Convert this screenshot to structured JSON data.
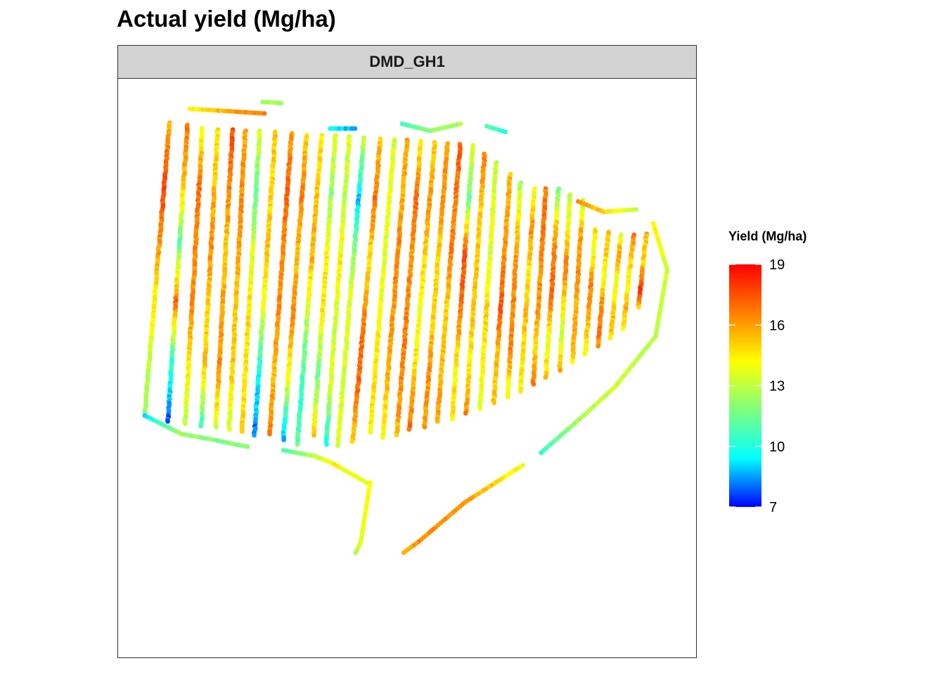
{
  "title": "Actual yield (Mg/ha)",
  "facet_label": "DMD_GH1",
  "legend": {
    "title": "Yield (Mg/ha)",
    "ticks": [
      19,
      16,
      13,
      10,
      7
    ]
  },
  "chart_data": {
    "type": "scatter",
    "title": "Actual yield (Mg/ha)",
    "facet": "DMD_GH1",
    "color_variable": "Yield (Mg/ha)",
    "color_scale": {
      "min": 7,
      "max": 19,
      "colors": [
        "#0000ff",
        "#00ffff",
        "#7fff7f",
        "#ffff00",
        "#ff7f00",
        "#ff0000"
      ],
      "ticks": [
        7,
        10,
        13,
        16,
        19
      ]
    },
    "axes_visible": false,
    "grid": false,
    "legend_position": "right",
    "passes": [
      {
        "x0": 0.089,
        "y0": 0.076,
        "x1": 0.046,
        "y1": 0.582,
        "yield": [
          15.6,
          17.8,
          16.4,
          14.6,
          13.2,
          12.3
        ]
      },
      {
        "x0": 0.12,
        "y0": 0.08,
        "x1": 0.086,
        "y1": 0.592,
        "yield": [
          16.8,
          15.4,
          11.4,
          16.9,
          10.4,
          7.6
        ]
      },
      {
        "x0": 0.146,
        "y0": 0.086,
        "x1": 0.116,
        "y1": 0.596,
        "yield": [
          14.1,
          16.9,
          16.4,
          16.3,
          14.7,
          12.9
        ]
      },
      {
        "x0": 0.172,
        "y0": 0.088,
        "x1": 0.144,
        "y1": 0.6,
        "yield": [
          14.6,
          15.4,
          16.4,
          14.8,
          15.3,
          10.5
        ]
      },
      {
        "x0": 0.198,
        "y0": 0.088,
        "x1": 0.169,
        "y1": 0.602,
        "yield": [
          17.6,
          16.6,
          15.1,
          15.9,
          16.3,
          13.5
        ]
      },
      {
        "x0": 0.22,
        "y0": 0.09,
        "x1": 0.192,
        "y1": 0.606,
        "yield": [
          15.9,
          16.3,
          15.9,
          15.1,
          15.2,
          13.3
        ]
      },
      {
        "x0": 0.245,
        "y0": 0.09,
        "x1": 0.214,
        "y1": 0.61,
        "yield": [
          13.6,
          11.3,
          13.5,
          14.9,
          14.5,
          14.9
        ]
      },
      {
        "x0": 0.272,
        "y0": 0.092,
        "x1": 0.236,
        "y1": 0.616,
        "yield": [
          15.2,
          14.8,
          15.5,
          13.5,
          9.8,
          8.0
        ]
      },
      {
        "x0": 0.3,
        "y0": 0.094,
        "x1": 0.262,
        "y1": 0.614,
        "yield": [
          16.1,
          17.2,
          16.3,
          16.5,
          15.4,
          16.6
        ]
      },
      {
        "x0": 0.326,
        "y0": 0.098,
        "x1": 0.286,
        "y1": 0.624,
        "yield": [
          15.2,
          16.6,
          15.3,
          16.6,
          13.7,
          8.6
        ]
      },
      {
        "x0": 0.352,
        "y0": 0.098,
        "x1": 0.31,
        "y1": 0.632,
        "yield": [
          14.5,
          15.4,
          15.7,
          12.8,
          10.4,
          11.2
        ]
      },
      {
        "x0": 0.376,
        "y0": 0.098,
        "x1": 0.338,
        "y1": 0.616,
        "yield": [
          13.6,
          12.2,
          14.6,
          14.6,
          11.4,
          15.3
        ]
      },
      {
        "x0": 0.4,
        "y0": 0.1,
        "x1": 0.36,
        "y1": 0.632,
        "yield": [
          13.7,
          12.9,
          14.5,
          13.1,
          13.6,
          9.8
        ]
      },
      {
        "x0": 0.425,
        "y0": 0.102,
        "x1": 0.38,
        "y1": 0.634,
        "yield": [
          13.1,
          8.9,
          12.6,
          14.0,
          13.4,
          13.6
        ]
      },
      {
        "x0": 0.454,
        "y0": 0.104,
        "x1": 0.406,
        "y1": 0.627,
        "yield": [
          15.1,
          16.9,
          14.6,
          16.7,
          17.2,
          15.2
        ]
      },
      {
        "x0": 0.478,
        "y0": 0.105,
        "x1": 0.436,
        "y1": 0.611,
        "yield": [
          13.3,
          14.0,
          13.6,
          14.1,
          14.9,
          14.4
        ]
      },
      {
        "x0": 0.5,
        "y0": 0.106,
        "x1": 0.458,
        "y1": 0.62,
        "yield": [
          15.8,
          15.6,
          16.6,
          16.1,
          15.6,
          13.8
        ]
      },
      {
        "x0": 0.524,
        "y0": 0.108,
        "x1": 0.482,
        "y1": 0.616,
        "yield": [
          14.3,
          17.2,
          16.0,
          16.7,
          16.6,
          15.6
        ]
      },
      {
        "x0": 0.548,
        "y0": 0.11,
        "x1": 0.504,
        "y1": 0.606,
        "yield": [
          15.0,
          16.1,
          14.9,
          14.1,
          15.0,
          17.0
        ]
      },
      {
        "x0": 0.57,
        "y0": 0.112,
        "x1": 0.53,
        "y1": 0.602,
        "yield": [
          15.8,
          16.4,
          14.9,
          15.0,
          16.2,
          16.0
        ]
      },
      {
        "x0": 0.592,
        "y0": 0.113,
        "x1": 0.552,
        "y1": 0.592,
        "yield": [
          17.3,
          16.6,
          16.6,
          14.9,
          15.4,
          16.0
        ]
      },
      {
        "x0": 0.614,
        "y0": 0.115,
        "x1": 0.578,
        "y1": 0.588,
        "yield": [
          14.0,
          11.6,
          17.5,
          16.7,
          14.5,
          14.6
        ]
      },
      {
        "x0": 0.634,
        "y0": 0.13,
        "x1": 0.602,
        "y1": 0.578,
        "yield": [
          16.7,
          15.1,
          15.2,
          15.3,
          14.5,
          16.3
        ]
      },
      {
        "x0": 0.654,
        "y0": 0.145,
        "x1": 0.626,
        "y1": 0.57,
        "yield": [
          13.1,
          13.7,
          13.6,
          15.0,
          14.5,
          13.6
        ]
      },
      {
        "x0": 0.678,
        "y0": 0.165,
        "x1": 0.65,
        "y1": 0.56,
        "yield": [
          15.5,
          15.8,
          16.6,
          17.3,
          15.3,
          15.1
        ]
      },
      {
        "x0": 0.696,
        "y0": 0.18,
        "x1": 0.674,
        "y1": 0.55,
        "yield": [
          12.6,
          14.9,
          16.4,
          16.4,
          16.5,
          13.7
        ]
      },
      {
        "x0": 0.72,
        "y0": 0.19,
        "x1": 0.696,
        "y1": 0.54,
        "yield": [
          13.4,
          16.4,
          14.5,
          15.6,
          14.6,
          14.2
        ]
      },
      {
        "x0": 0.74,
        "y0": 0.19,
        "x1": 0.718,
        "y1": 0.528,
        "yield": [
          16.6,
          17.0,
          16.3,
          16.2,
          15.0,
          16.6
        ]
      },
      {
        "x0": 0.762,
        "y0": 0.19,
        "x1": 0.74,
        "y1": 0.516,
        "yield": [
          11.2,
          15.3,
          16.9,
          16.9,
          13.6,
          15.2
        ]
      },
      {
        "x0": 0.782,
        "y0": 0.2,
        "x1": 0.764,
        "y1": 0.504,
        "yield": [
          13.1,
          13.9,
          16.9,
          15.0,
          13.1,
          15.6
        ]
      },
      {
        "x0": 0.804,
        "y0": 0.21,
        "x1": 0.786,
        "y1": 0.49,
        "yield": [
          12.7,
          15.7,
          16.4,
          15.7,
          16.0,
          14.4
        ]
      },
      {
        "x0": 0.826,
        "y0": 0.26,
        "x1": 0.808,
        "y1": 0.476,
        "yield": [
          14.8,
          14.0,
          16.4,
          16.4,
          15.2,
          13.7
        ]
      },
      {
        "x0": 0.848,
        "y0": 0.265,
        "x1": 0.83,
        "y1": 0.462,
        "yield": [
          15.2,
          15.0,
          13.6,
          16.1,
          16.8,
          16.3
        ]
      },
      {
        "x0": 0.87,
        "y0": 0.27,
        "x1": 0.852,
        "y1": 0.448,
        "yield": [
          13.7,
          16.1,
          14.1,
          14.2,
          15.3,
          14.9
        ]
      },
      {
        "x0": 0.892,
        "y0": 0.27,
        "x1": 0.874,
        "y1": 0.432,
        "yield": [
          16.4,
          15.3,
          14.5,
          14.3,
          15.7,
          14.2
        ]
      },
      {
        "x0": 0.914,
        "y0": 0.268,
        "x1": 0.9,
        "y1": 0.395,
        "yield": [
          15.6,
          15.0,
          14.8,
          16.7,
          18.4,
          15.1
        ]
      }
    ],
    "headlands": [
      {
        "points": [
          [
            0.124,
            0.052
          ],
          [
            0.19,
            0.056
          ],
          [
            0.253,
            0.06
          ]
        ],
        "yield": [
          14.2,
          15.8,
          16.7
        ]
      },
      {
        "points": [
          [
            0.25,
            0.04
          ],
          [
            0.282,
            0.042
          ]
        ],
        "yield": [
          12.6,
          12.4
        ]
      },
      {
        "points": [
          [
            0.367,
            0.086
          ],
          [
            0.41,
            0.086
          ]
        ],
        "yield": [
          9.8,
          8.3
        ]
      },
      {
        "points": [
          [
            0.492,
            0.078
          ],
          [
            0.54,
            0.09
          ],
          [
            0.592,
            0.078
          ]
        ],
        "yield": [
          10.5,
          12.0,
          12.6
        ]
      },
      {
        "points": [
          [
            0.638,
            0.082
          ],
          [
            0.67,
            0.092
          ]
        ],
        "yield": [
          11.2,
          10.0
        ]
      },
      {
        "points": [
          [
            0.796,
            0.212
          ],
          [
            0.84,
            0.23
          ],
          [
            0.896,
            0.226
          ]
        ],
        "yield": [
          16.4,
          15.0,
          12.8
        ]
      },
      {
        "points": [
          [
            0.926,
            0.25
          ],
          [
            0.95,
            0.33
          ],
          [
            0.93,
            0.445
          ],
          [
            0.86,
            0.532
          ],
          [
            0.81,
            0.578
          ],
          [
            0.732,
            0.646
          ]
        ],
        "yield": [
          14.5,
          13.4,
          12.8,
          13.3,
          12.9,
          10.4
        ]
      },
      {
        "points": [
          [
            0.7,
            0.668
          ],
          [
            0.6,
            0.732
          ],
          [
            0.52,
            0.8
          ],
          [
            0.494,
            0.819
          ]
        ],
        "yield": [
          14.0,
          16.1,
          16.3,
          15.6
        ]
      },
      {
        "points": [
          [
            0.046,
            0.582
          ],
          [
            0.11,
            0.614
          ],
          [
            0.16,
            0.623
          ],
          [
            0.224,
            0.636
          ]
        ],
        "yield": [
          9.2,
          12.4,
          11.8,
          12.0
        ]
      },
      {
        "points": [
          [
            0.286,
            0.642
          ],
          [
            0.34,
            0.652
          ],
          [
            0.37,
            0.664
          ],
          [
            0.43,
            0.698
          ]
        ],
        "yield": [
          11.0,
          12.9,
          14.4,
          13.6
        ]
      },
      {
        "points": [
          [
            0.436,
            0.698
          ],
          [
            0.42,
            0.8
          ],
          [
            0.411,
            0.819
          ]
        ],
        "yield": [
          14.4,
          13.6,
          12.9
        ]
      }
    ]
  }
}
